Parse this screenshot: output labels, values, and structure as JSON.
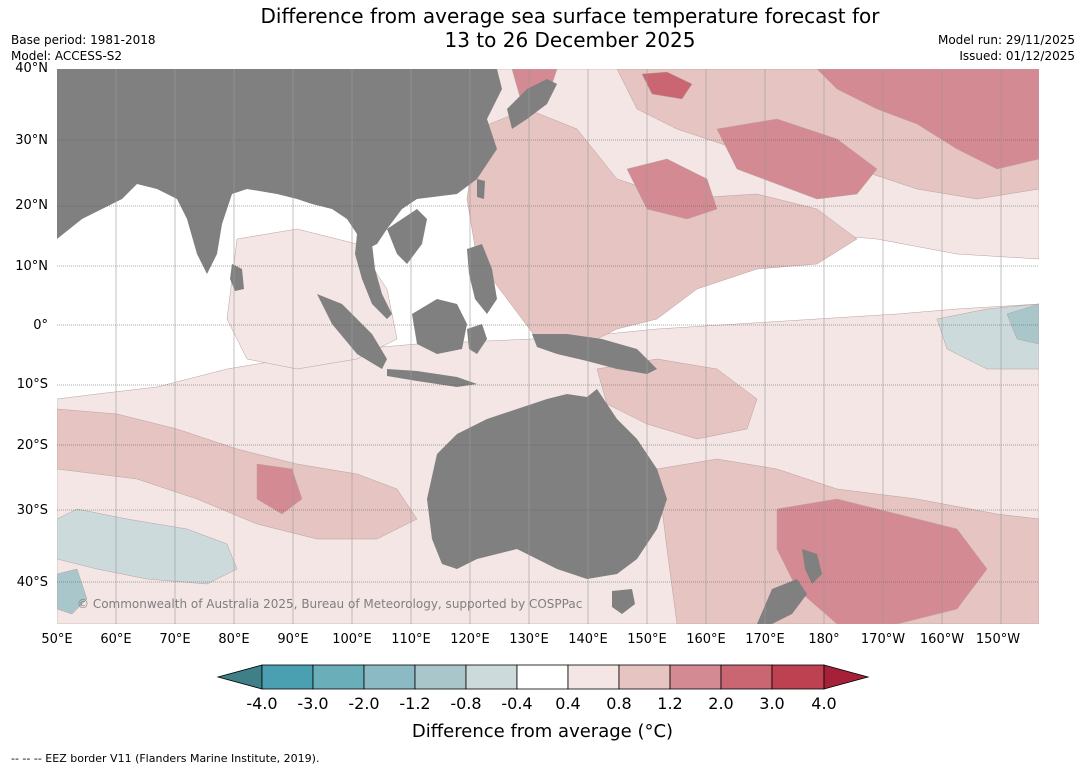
{
  "title_line1": "Difference from average sea surface temperature forecast for",
  "title_line2": "13 to 26 December 2025",
  "base_period": "Base period: 1981-2018",
  "model": "Model: ACCESS-S2",
  "model_run": "Model run: 29/11/2025",
  "issued": "Issued: 01/12/2025",
  "lat_labels": [
    "40°N",
    "30°N",
    "20°N",
    "10°N",
    "0°",
    "10°S",
    "20°S",
    "30°S",
    "40°S"
  ],
  "lon_labels": [
    "50°E",
    "60°E",
    "70°E",
    "80°E",
    "90°E",
    "100°E",
    "110°E",
    "120°E",
    "130°E",
    "140°E",
    "150°E",
    "160°E",
    "170°E",
    "180°",
    "170°W",
    "160°W",
    "150°W"
  ],
  "copyright": "© Commonwealth of Australia 2025, Bureau of Meteorology, supported by COSPPac",
  "colorbar": {
    "ticks": [
      "-4.0",
      "-3.0",
      "-2.0",
      "-1.2",
      "-0.8",
      "-0.4",
      "0.4",
      "0.8",
      "1.2",
      "2.0",
      "3.0",
      "4.0"
    ],
    "colors": [
      "#3e7f88",
      "#4aa0b0",
      "#6aaeb9",
      "#8bb9c4",
      "#a9c6cb",
      "#ccdadc",
      "#ffffff",
      "#f3e6e5",
      "#e6c4c1",
      "#d48a92",
      "#c96671",
      "#bd4150",
      "#a6203a"
    ],
    "label": "Difference from average (°C)"
  },
  "footer": "--  --  -- EEZ border V11 (Flanders Marine Institute, 2019).",
  "colors": {
    "land": "#808080",
    "anomaly_0.4_0.8": "#f3e6e5",
    "anomaly_0.8_1.2": "#e6c4c1",
    "anomaly_1.2_2.0": "#d48a92",
    "anomaly_2.0_3.0": "#c96671",
    "anomaly_neg_0.4_0.8": "#ccdadc",
    "anomaly_neg_0.8_1.2": "#a9c6cb"
  }
}
